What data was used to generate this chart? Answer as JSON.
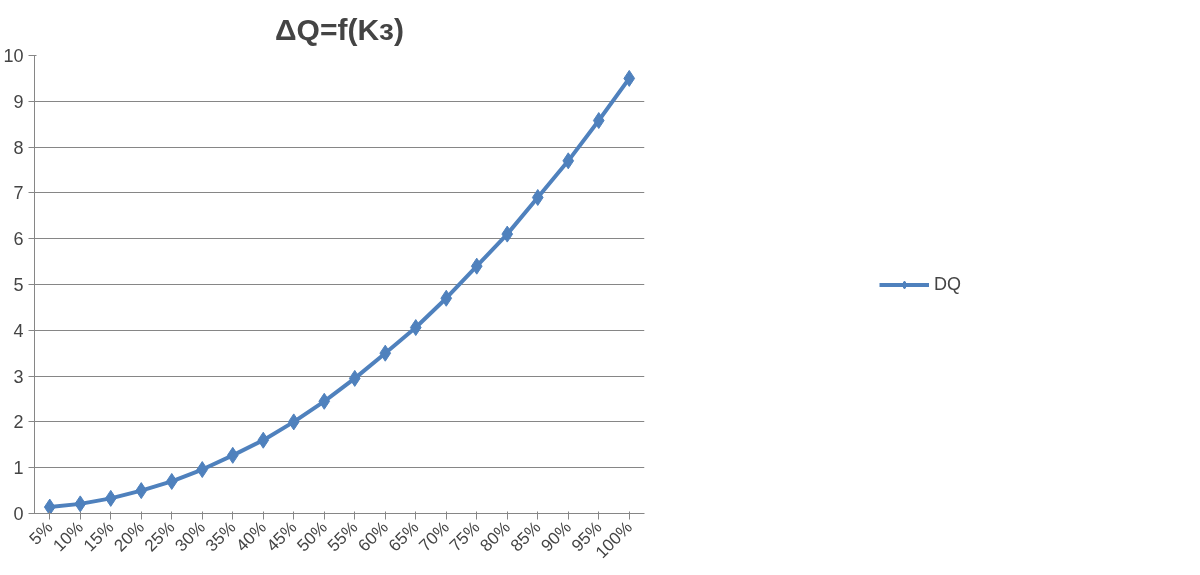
{
  "chart_data": {
    "type": "line",
    "title": "ΔQ=f(Kз)",
    "categories": [
      "5%",
      "10%",
      "15%",
      "20%",
      "25%",
      "30%",
      "35%",
      "40%",
      "45%",
      "50%",
      "55%",
      "60%",
      "65%",
      "70%",
      "75%",
      "80%",
      "85%",
      "90%",
      "95%",
      "100%"
    ],
    "series": [
      {
        "name": "DQ",
        "color": "#4f81bd",
        "values": [
          0.14,
          0.21,
          0.33,
          0.5,
          0.7,
          0.96,
          1.27,
          1.6,
          2.0,
          2.45,
          2.95,
          3.5,
          4.06,
          4.7,
          5.4,
          6.1,
          6.9,
          7.7,
          8.58,
          9.5
        ]
      }
    ],
    "ylim": [
      0,
      10
    ],
    "yticks": [
      0,
      1,
      2,
      3,
      4,
      5,
      6,
      7,
      8,
      9,
      10
    ],
    "grid": "y",
    "legend": "right",
    "marker": "diamond",
    "line_style": "solid"
  }
}
